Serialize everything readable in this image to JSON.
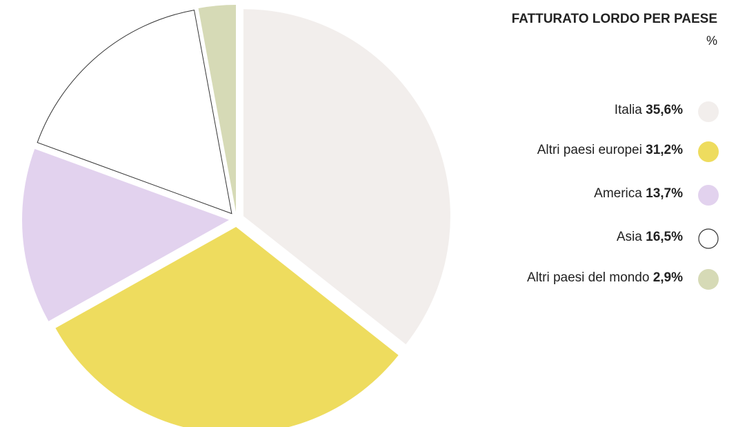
{
  "chart_data": {
    "type": "pie",
    "title": "FATTURATO LORDO PER PAESE",
    "subtitle": "%",
    "categories": [
      "Italia",
      "Altri paesi europei",
      "America",
      "Asia",
      "Altri paesi del mondo"
    ],
    "values": [
      35.6,
      31.2,
      13.7,
      16.5,
      2.9
    ],
    "value_labels": [
      "35,6%",
      "31,2%",
      "13,7%",
      "16,5%",
      "2,9%"
    ],
    "colors": [
      "#f2eeec",
      "#eedc5e",
      "#e2d2ee",
      "#ffffff",
      "#d6dab6"
    ]
  }
}
